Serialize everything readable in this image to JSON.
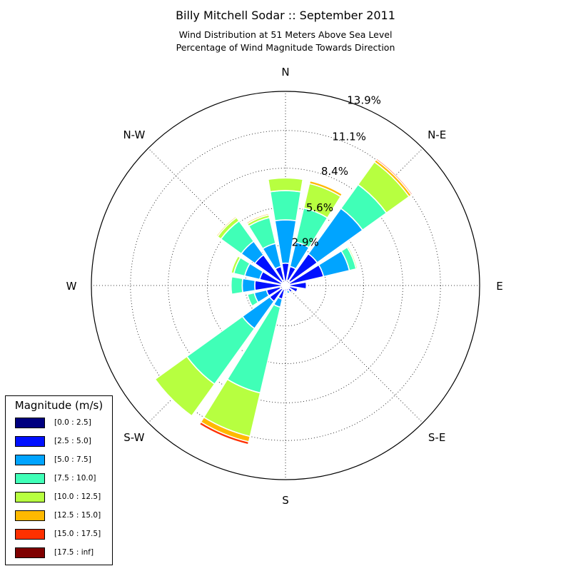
{
  "chart_data": {
    "type": "windrose",
    "title": "Billy Mitchell Sodar :: September 2011",
    "subtitle_lines": [
      "Wind Distribution at 51 Meters Above Sea Level",
      "Percentage of Wind Magnitude Towards Direction"
    ],
    "direction_labels": [
      "N",
      "N-E",
      "E",
      "S-E",
      "S",
      "S-W",
      "W",
      "N-W"
    ],
    "radial_ticks": [
      2.9,
      5.6,
      8.4,
      11.1,
      13.9
    ],
    "radial_tick_labels": [
      "2.9%",
      "5.6%",
      "8.4%",
      "11.1%",
      "13.9%"
    ],
    "r_max": 13.9,
    "grid": true,
    "legend_position": "lower-left",
    "legend_title": "Magnitude (m/s)",
    "bins": [
      {
        "name": "[0.0 : 2.5]",
        "color": "#00007f"
      },
      {
        "name": "[2.5 : 5.0]",
        "color": "#0010ff"
      },
      {
        "name": "[5.0 : 7.5]",
        "color": "#00a4ff"
      },
      {
        "name": "[7.5 : 10.0]",
        "color": "#40ffb7"
      },
      {
        "name": "[10.0 : 12.5]",
        "color": "#b7ff40"
      },
      {
        "name": "[12.5 : 15.0]",
        "color": "#ffb900"
      },
      {
        "name": "[15.0 : 17.5]",
        "color": "#ff3000"
      },
      {
        "name": "[17.5 : inf]",
        "color": "#7f0000"
      }
    ],
    "sectors": [
      {
        "direction_deg": 0,
        "values": [
          0.3,
          1.3,
          3.1,
          2.1,
          0.9,
          0,
          0,
          0
        ]
      },
      {
        "direction_deg": 22.5,
        "values": [
          0.4,
          1.0,
          1.8,
          2.5,
          1.8,
          0.2,
          0,
          0
        ]
      },
      {
        "direction_deg": 45,
        "values": [
          0.4,
          2.4,
          4.0,
          2.1,
          2.0,
          0.2,
          0.1,
          0
        ]
      },
      {
        "direction_deg": 67.5,
        "values": [
          0.3,
          2.5,
          1.9,
          0.5,
          0.1,
          0,
          0,
          0
        ]
      },
      {
        "direction_deg": 90,
        "values": [
          0.3,
          1.2,
          0,
          0,
          0,
          0,
          0,
          0
        ]
      },
      {
        "direction_deg": 112.5,
        "values": [
          0.3,
          0.6,
          0,
          0,
          0,
          0,
          0,
          0
        ]
      },
      {
        "direction_deg": 135,
        "values": [
          0.3,
          0.3,
          0,
          0,
          0,
          0,
          0,
          0
        ]
      },
      {
        "direction_deg": 157.5,
        "values": [
          0.2,
          0.2,
          0.2,
          0,
          0,
          0,
          0,
          0
        ]
      },
      {
        "direction_deg": 180,
        "values": [
          0.2,
          0.2,
          0.1,
          0.1,
          0,
          0,
          0,
          0
        ]
      },
      {
        "direction_deg": 202.5,
        "values": [
          0.3,
          0.7,
          0.6,
          6.3,
          3.2,
          0.4,
          0.2,
          0
        ]
      },
      {
        "direction_deg": 225,
        "values": [
          0.3,
          1.1,
          2.4,
          4.9,
          2.8,
          0,
          0,
          0
        ]
      },
      {
        "direction_deg": 247.5,
        "values": [
          0.4,
          1.0,
          0.9,
          0.5,
          0,
          0,
          0,
          0
        ]
      },
      {
        "direction_deg": 270,
        "values": [
          0.3,
          1.9,
          0.9,
          0.8,
          0,
          0,
          0,
          0
        ]
      },
      {
        "direction_deg": 292.5,
        "values": [
          0.3,
          1.6,
          1.1,
          0.8,
          0.2,
          0,
          0,
          0
        ]
      },
      {
        "direction_deg": 315,
        "values": [
          0.3,
          2.4,
          1.2,
          1.8,
          0.3,
          0.1,
          0,
          0
        ]
      },
      {
        "direction_deg": 337.5,
        "values": [
          0.4,
          1.0,
          1.7,
          1.9,
          0.2,
          0.1,
          0,
          0
        ]
      }
    ]
  }
}
